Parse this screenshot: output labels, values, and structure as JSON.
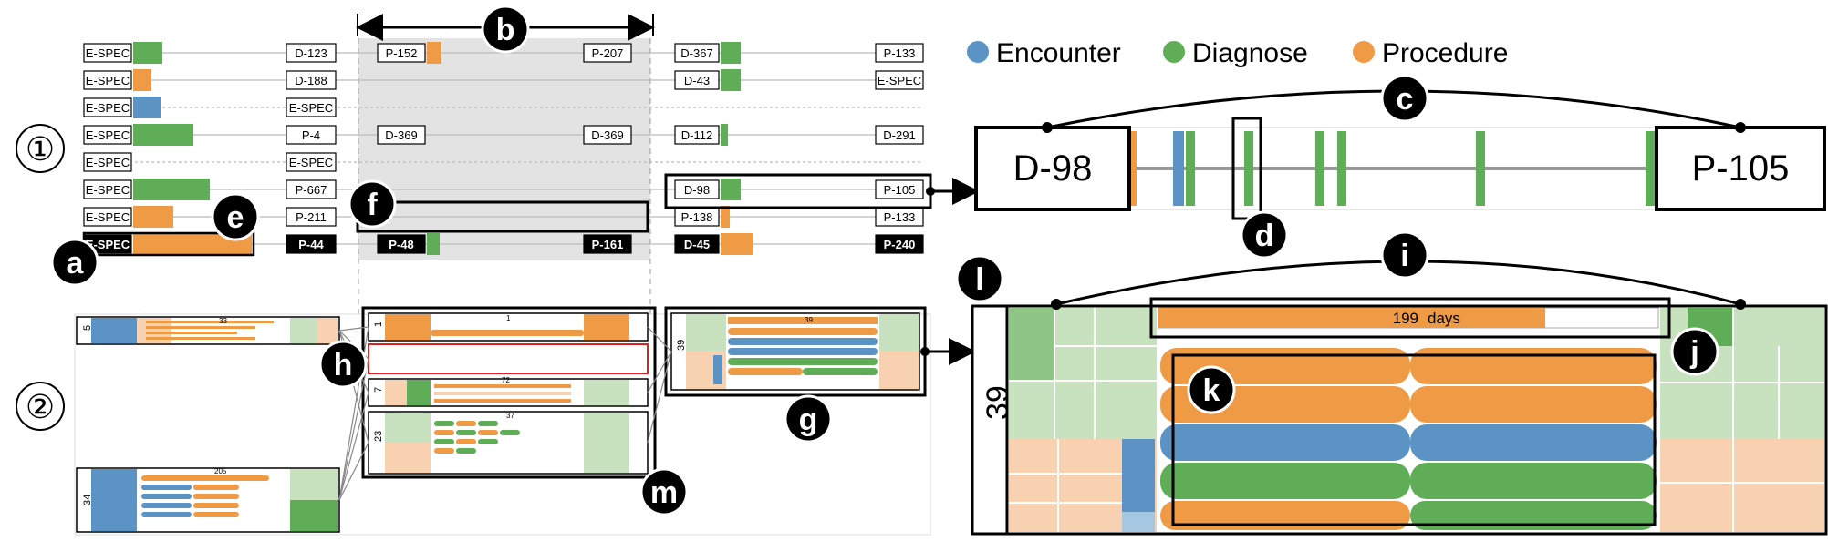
{
  "legend": [
    {
      "label": "Encounter",
      "color": "#5b93c4"
    },
    {
      "label": "Diagnose",
      "color": "#5fae57"
    },
    {
      "label": "Procedure",
      "color": "#ef9a45"
    }
  ],
  "colors": {
    "encounter": "#5b93c4",
    "diagnose": "#5fae57",
    "procedure": "#ef9a45",
    "light_green": "#c8e2c0",
    "light_orange": "#f8d2b0",
    "gap_band": "#e3e3e3"
  },
  "section_markers": [
    "①",
    "②"
  ],
  "callouts": [
    "a",
    "b",
    "c",
    "d",
    "e",
    "f",
    "g",
    "h",
    "i",
    "j",
    "k",
    "l",
    "m"
  ],
  "rows": [
    {
      "left": "E-SPEC",
      "bar": "diagnose",
      "mid1": "D-123",
      "gap1": "P-152",
      "gap2": "P-207",
      "mid2": "D-367",
      "bar2": "diagnose",
      "right": "P-133"
    },
    {
      "left": "E-SPEC",
      "bar": "procedure",
      "mid1": "D-188",
      "gap1": "",
      "gap2": "",
      "mid2": "D-43",
      "bar2": "diagnose",
      "right": "E-SPEC"
    },
    {
      "left": "E-SPEC",
      "bar": "encounter",
      "mid1": "E-SPEC",
      "gap1": "",
      "gap2": "",
      "mid2": "",
      "bar2": "",
      "right": ""
    },
    {
      "left": "E-SPEC",
      "bar": "diagnose",
      "mid1": "P-4",
      "gap1": "D-369",
      "gap2": "D-369",
      "mid2": "D-112",
      "bar2": "diagnose",
      "right": "D-291"
    },
    {
      "left": "E-SPEC",
      "bar": "",
      "mid1": "E-SPEC",
      "gap1": "",
      "gap2": "",
      "mid2": "",
      "bar2": "",
      "right": ""
    },
    {
      "left": "E-SPEC",
      "bar": "diagnose",
      "mid1": "P-667",
      "gap1": "",
      "gap2": "",
      "mid2": "D-98",
      "bar2": "diagnose",
      "right": "P-105"
    },
    {
      "left": "E-SPEC",
      "bar": "procedure",
      "mid1": "P-211",
      "gap1": "",
      "gap2": "",
      "mid2": "P-138",
      "bar2": "procedure",
      "right": "P-133"
    },
    {
      "left": "E-SPEC",
      "bar": "procedure",
      "mid1": "P-44",
      "gap1": "P-48",
      "gap2": "P-161",
      "mid2": "D-45",
      "bar2": "procedure",
      "right": "P-240",
      "highlight": true
    }
  ],
  "detail_top": {
    "start": "D-98",
    "end": "P-105"
  },
  "cluster_counts": [
    "5",
    "34",
    "1",
    "7",
    "23",
    "39"
  ],
  "small_labels": [
    "33",
    "205",
    "1",
    "72",
    "37",
    "39"
  ],
  "detail_bottom": {
    "count": "39",
    "duration_value": "199",
    "duration_unit": "days"
  }
}
